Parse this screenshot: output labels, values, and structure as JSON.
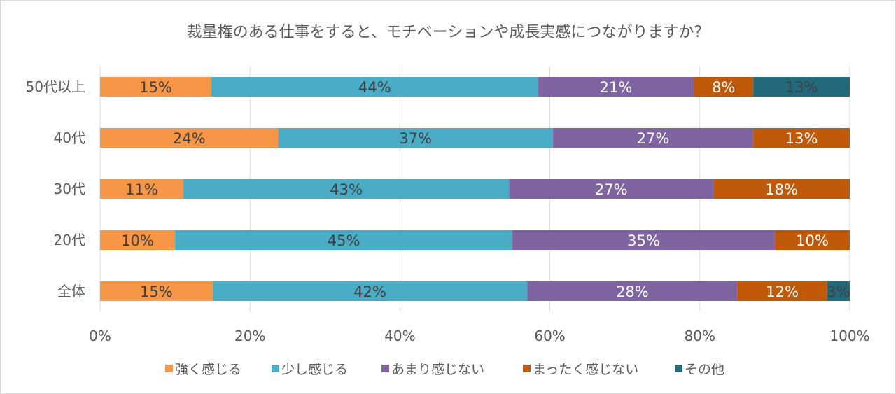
{
  "chart_data": {
    "type": "bar",
    "orientation": "horizontal",
    "stacked": "percent",
    "title": "裁量権のある仕事をすると、モチベーションや成長実感につながりますか？",
    "categories": [
      "50代以上",
      "40代",
      "30代",
      "20代",
      "全体"
    ],
    "series": [
      {
        "name": "強く感じる",
        "color": "#F79646",
        "label_color": "#404040",
        "values": [
          15,
          24,
          11,
          10,
          15
        ]
      },
      {
        "name": "少し感じる",
        "color": "#4BACC6",
        "label_color": "#404040",
        "values": [
          44,
          37,
          43,
          45,
          42
        ]
      },
      {
        "name": "あまり感じない",
        "color": "#8064A2",
        "label_color": "#ffffff",
        "values": [
          21,
          27,
          27,
          35,
          28
        ]
      },
      {
        "name": "まったく感じない",
        "color": "#C0590A",
        "label_color": "#ffffff",
        "values": [
          8,
          13,
          18,
          10,
          12
        ]
      },
      {
        "name": "その他",
        "color": "#23697C",
        "label_color": "#404040",
        "values": [
          13,
          0,
          0,
          0,
          3
        ]
      }
    ],
    "xticks": [
      "0%",
      "20%",
      "40%",
      "60%",
      "80%",
      "100%"
    ],
    "xlim": [
      0,
      100
    ],
    "grid": true,
    "legend": "bottom"
  }
}
